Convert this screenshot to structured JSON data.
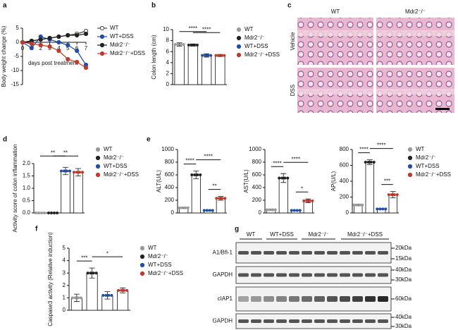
{
  "chart_data": [
    {
      "type": "line",
      "panel": "a",
      "y_label": "Body weight change (%)",
      "x_label": "days post treatment",
      "x": [
        0,
        1,
        2,
        3,
        4,
        5,
        6,
        7
      ],
      "xlim": [
        0,
        7
      ],
      "xticks": [
        0,
        1,
        2,
        3,
        4,
        5,
        6,
        7
      ],
      "ylim": [
        -15,
        5
      ],
      "yticks": [
        -15,
        -10,
        -5,
        0,
        5
      ],
      "series": [
        {
          "name": "WT",
          "color": "#444444",
          "open": true,
          "values": [
            0,
            0.5,
            1,
            1.5,
            2,
            2.5,
            3,
            4
          ]
        },
        {
          "name": "WT+DSS",
          "color": "#1f4fa8",
          "values": [
            0,
            -2,
            2,
            1,
            0,
            -1,
            -3,
            -8
          ]
        },
        {
          "name": "Mdr2⁻/⁻",
          "color": "#222222",
          "values": [
            0,
            0.5,
            1,
            1.5,
            2,
            2.5,
            2.5,
            3
          ]
        },
        {
          "name": "Mdr2⁻/⁻+DSS",
          "color": "#c0392b",
          "values": [
            0,
            -0.5,
            -1,
            -1.5,
            -3,
            -6,
            -7,
            -9
          ]
        }
      ]
    },
    {
      "type": "bar",
      "panel": "b",
      "y_label": "Colon length (cm)",
      "legend": true,
      "categories": [
        "WT",
        "Mdr2⁻/⁻",
        "WT+DSS",
        "Mdr2⁻/⁻+DSS"
      ],
      "colors": [
        "#9a9a9a",
        "#222222",
        "#1f4fa8",
        "#c0392b"
      ],
      "values": [
        7.3,
        7.2,
        5.3,
        5.3
      ],
      "errors": [
        0.3,
        0.2,
        0.3,
        0.2
      ],
      "ylim": [
        0,
        10
      ],
      "yticks": [
        0,
        2,
        4,
        6,
        8,
        10
      ],
      "significance": [
        "****",
        "****"
      ]
    },
    {
      "type": "bar",
      "panel": "d",
      "y_label": "Activity score of colon inflammation",
      "legend": true,
      "categories": [
        "WT",
        "Mdr2⁻/⁻",
        "WT+DSS",
        "Mdr2⁻/⁻+DSS"
      ],
      "colors": [
        "#9a9a9a",
        "#222222",
        "#1f4fa8",
        "#c0392b"
      ],
      "values": [
        0,
        0,
        1.7,
        1.65
      ],
      "errors": [
        0,
        0,
        0.15,
        0.15
      ],
      "ylim": [
        0,
        2
      ],
      "yticks": [
        {
          "value": 0,
          "label": "0.0"
        },
        {
          "value": 0.5,
          "label": "0.5"
        },
        {
          "value": 1,
          "label": "1.0"
        },
        {
          "value": 1.5,
          "label": "1.5"
        },
        {
          "value": 2,
          "label": "2.0"
        }
      ],
      "significance": [
        "**",
        "**"
      ]
    },
    {
      "type": "bar",
      "panel": "e",
      "y_label": "ALT(U/L)",
      "categories": [
        "WT",
        "Mdr2⁻/⁻",
        "WT+DSS",
        "Mdr2⁻/⁻+DSS"
      ],
      "colors": [
        "#9a9a9a",
        "#222222",
        "#1f4fa8",
        "#c0392b"
      ],
      "values": [
        80,
        600,
        40,
        230
      ],
      "errors": [
        10,
        60,
        5,
        30
      ],
      "ylim": [
        0,
        1000
      ],
      "yticks": [
        0,
        200,
        400,
        600,
        800,
        1000
      ],
      "significance": [
        "****",
        "****",
        "**"
      ]
    },
    {
      "type": "bar",
      "y_label": "AST(U/L)",
      "categories": [
        "WT",
        "Mdr2⁻/⁻",
        "WT+DSS",
        "Mdr2⁻/⁻+DSS"
      ],
      "colors": [
        "#9a9a9a",
        "#222222",
        "#1f4fa8",
        "#c0392b"
      ],
      "values": [
        50,
        550,
        40,
        190
      ],
      "errors": [
        8,
        70,
        5,
        30
      ],
      "ylim": [
        0,
        1000
      ],
      "yticks": [
        0,
        200,
        400,
        600,
        800,
        1000
      ],
      "significance": [
        "****",
        "****",
        "*"
      ]
    },
    {
      "type": "bar",
      "y_label": "AP(U/L)",
      "legend": true,
      "categories": [
        "WT",
        "Mdr2⁻/⁻",
        "WT+DSS",
        "Mdr2⁻/⁻+DSS"
      ],
      "colors": [
        "#9a9a9a",
        "#222222",
        "#1f4fa8",
        "#c0392b"
      ],
      "values": [
        100,
        640,
        50,
        230
      ],
      "errors": [
        10,
        30,
        5,
        40
      ],
      "ylim": [
        0,
        800
      ],
      "yticks": [
        0,
        200,
        400,
        600,
        800
      ],
      "significance": [
        "****",
        "****",
        "***"
      ]
    },
    {
      "type": "bar",
      "panel": "f",
      "y_label": "Caspase3 activity (Relative induction)",
      "legend": true,
      "categories": [
        "WT",
        "Mdr2⁻/⁻",
        "WT+DSS",
        "Mdr2⁻/⁻+DSS"
      ],
      "colors": [
        "#9a9a9a",
        "#222222",
        "#1f4fa8",
        "#c0392b"
      ],
      "values": [
        1,
        3,
        1.2,
        1.6
      ],
      "errors": [
        0.3,
        0.4,
        0.3,
        0.2
      ],
      "ylim": [
        0,
        5
      ],
      "yticks": [
        0,
        1,
        2,
        3,
        4,
        5
      ],
      "significance": [
        "***",
        "*"
      ]
    }
  ],
  "histology": {
    "panel": "c",
    "columns": [
      "WT",
      "Mdr2⁻/⁻"
    ],
    "rows": [
      "Vehicle",
      "DSS"
    ]
  },
  "blot": {
    "panel": "g",
    "groups": [
      "WT",
      "WT+DSS",
      "Mdr2⁻/⁻",
      "Mdr2⁻/⁻+DSS"
    ],
    "rows": [
      {
        "label": "A1/Bfl-1",
        "markers": [
          "20kDa",
          "15kDa"
        ]
      },
      {
        "label": "GAPDH",
        "markers": [
          "40kDa",
          "30kDa"
        ]
      },
      {
        "label": "cIAP1",
        "markers": [
          "60kDa"
        ]
      },
      {
        "label": "GAPDH",
        "markers": [
          "40kDa",
          "30kDa"
        ]
      }
    ]
  }
}
